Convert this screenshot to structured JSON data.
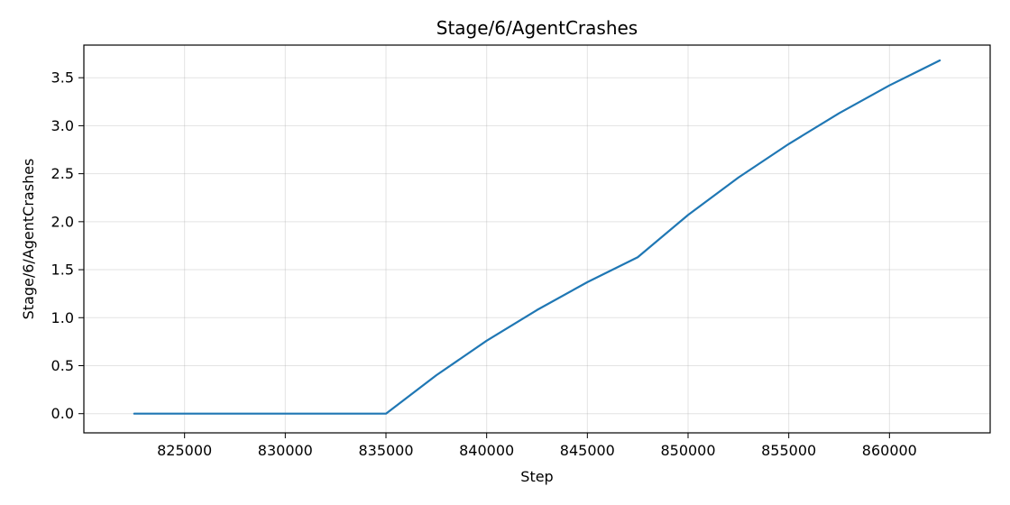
{
  "chart_data": {
    "type": "line",
    "title": "Stage/6/AgentCrashes",
    "xlabel": "Step",
    "ylabel": "Stage/6/AgentCrashes",
    "xlim": [
      820000,
      865000
    ],
    "ylim": [
      -0.2,
      3.84
    ],
    "xticks": [
      825000,
      830000,
      835000,
      840000,
      845000,
      850000,
      855000,
      860000
    ],
    "yticks": [
      "0.0",
      "0.5",
      "1.0",
      "1.5",
      "2.0",
      "2.5",
      "3.0",
      "3.5"
    ],
    "grid": true,
    "series": [
      {
        "color": "#1f77b4",
        "x": [
          822500,
          825000,
          827500,
          830000,
          832500,
          835000,
          837500,
          840000,
          842500,
          845000,
          847500,
          850000,
          852500,
          855000,
          857500,
          860000,
          862500
        ],
        "y": [
          0.0,
          0.0,
          0.0,
          0.0,
          0.0,
          0.0,
          0.4,
          0.76,
          1.08,
          1.37,
          1.63,
          2.07,
          2.46,
          2.81,
          3.13,
          3.42,
          3.68
        ]
      }
    ]
  }
}
